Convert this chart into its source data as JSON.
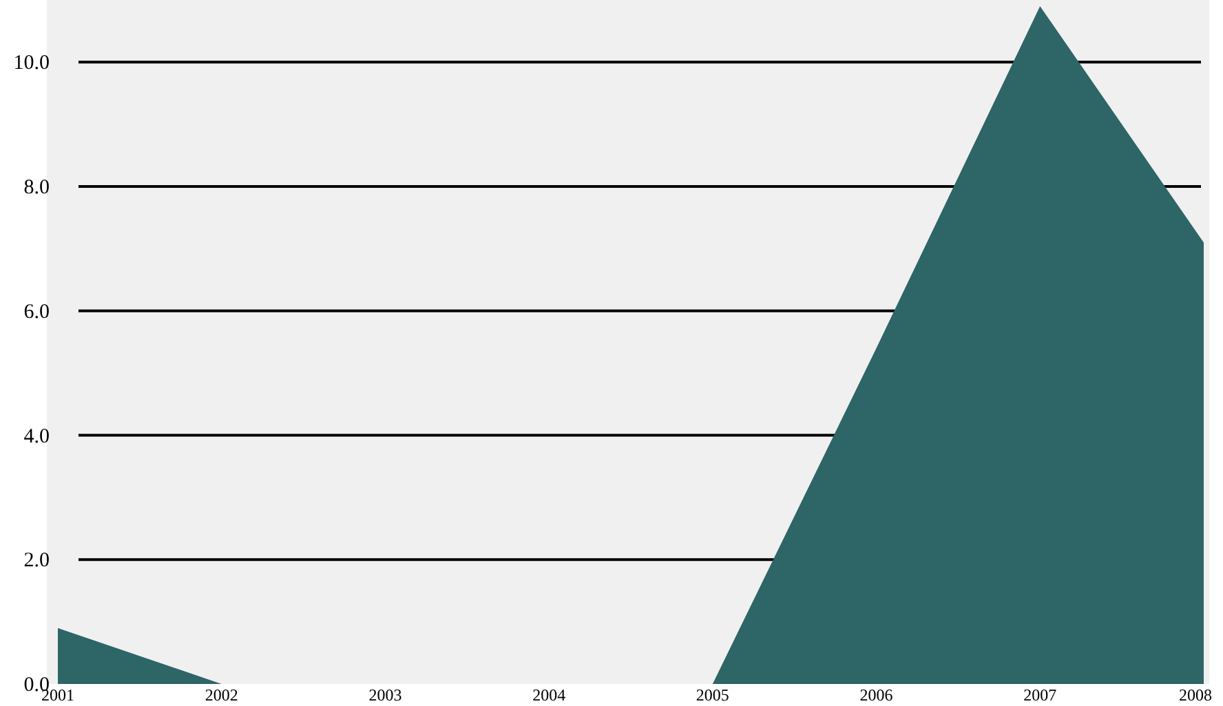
{
  "chart_data": {
    "type": "area",
    "categories": [
      "2001",
      "2002",
      "2003",
      "2004",
      "2005",
      "2006",
      "2007",
      "2008"
    ],
    "series": [
      {
        "color": "#2e6566",
        "values": [
          0.9,
          0,
          0,
          0,
          0,
          5.4,
          10.9,
          7.1
        ]
      }
    ],
    "ylim": [
      0,
      11
    ],
    "yticks": [
      {
        "value": 0,
        "label": "0.0"
      },
      {
        "value": 2,
        "label": "2.0"
      },
      {
        "value": 4,
        "label": "4.0"
      },
      {
        "value": 6,
        "label": "6.0"
      },
      {
        "value": 8,
        "label": "8.0"
      },
      {
        "value": 10,
        "label": "10.0"
      }
    ],
    "grid": "y"
  }
}
